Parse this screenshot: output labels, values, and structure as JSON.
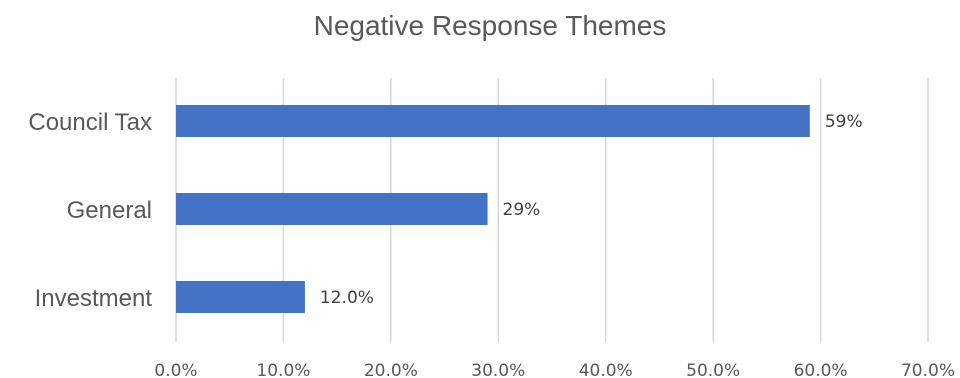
{
  "chart_data": {
    "type": "bar",
    "orientation": "horizontal",
    "title": "Negative Response Themes",
    "categories": [
      "Council Tax",
      "General",
      "Investment"
    ],
    "values": [
      0.59,
      0.29,
      0.12
    ],
    "data_labels": [
      "59%",
      "29%",
      "12.0%"
    ],
    "xlim": [
      0,
      0.7
    ],
    "x_ticks": [
      0,
      0.1,
      0.2,
      0.3,
      0.4,
      0.5,
      0.6,
      0.7
    ],
    "x_tick_labels": [
      "0.0%",
      "10.0%",
      "20.0%",
      "30.0%",
      "40.0%",
      "50.0%",
      "60.0%",
      "70.0%"
    ],
    "grid": "vertical",
    "legend": "none",
    "bar_color": "#4472C4",
    "grid_color": "#D9D9D9",
    "text_color": "#595959"
  }
}
